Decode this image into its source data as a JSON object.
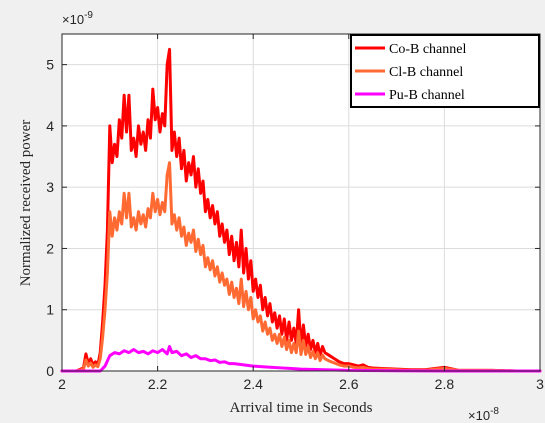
{
  "chart_data": {
    "type": "line",
    "xlabel": "Arrival time in Seconds",
    "ylabel": "Normalized received power",
    "x_multiplier": {
      "base": "×10",
      "exp": "-8"
    },
    "y_multiplier": {
      "base": "×10",
      "exp": "-9"
    },
    "xlim": [
      2,
      3
    ],
    "ylim": [
      0,
      5.5
    ],
    "x_ticks": [
      2,
      2.2,
      2.4,
      2.6,
      2.8,
      3
    ],
    "x_tick_labels": [
      "2",
      "2.2",
      "2.4",
      "2.6",
      "2.8",
      "3"
    ],
    "y_ticks": [
      0,
      1,
      2,
      3,
      4,
      5
    ],
    "y_tick_labels": [
      "0",
      "1",
      "2",
      "3",
      "4",
      "5"
    ],
    "grid": true,
    "legend_position": "top-right",
    "series": [
      {
        "name": "Co-B channel",
        "color": "#ff0000",
        "x": [
          2.0,
          2.03,
          2.045,
          2.05,
          2.055,
          2.06,
          2.065,
          2.07,
          2.075,
          2.08,
          2.085,
          2.09,
          2.095,
          2.1,
          2.105,
          2.11,
          2.115,
          2.12,
          2.125,
          2.13,
          2.135,
          2.14,
          2.145,
          2.15,
          2.155,
          2.16,
          2.165,
          2.17,
          2.175,
          2.18,
          2.185,
          2.19,
          2.195,
          2.2,
          2.205,
          2.21,
          2.215,
          2.22,
          2.225,
          2.23,
          2.235,
          2.24,
          2.245,
          2.25,
          2.255,
          2.26,
          2.265,
          2.27,
          2.275,
          2.28,
          2.285,
          2.29,
          2.295,
          2.3,
          2.305,
          2.31,
          2.315,
          2.32,
          2.325,
          2.33,
          2.335,
          2.34,
          2.345,
          2.35,
          2.355,
          2.36,
          2.365,
          2.37,
          2.375,
          2.38,
          2.385,
          2.39,
          2.395,
          2.4,
          2.405,
          2.41,
          2.415,
          2.42,
          2.425,
          2.43,
          2.435,
          2.44,
          2.445,
          2.45,
          2.455,
          2.46,
          2.465,
          2.47,
          2.475,
          2.48,
          2.485,
          2.49,
          2.495,
          2.5,
          2.505,
          2.51,
          2.515,
          2.52,
          2.525,
          2.53,
          2.535,
          2.54,
          2.545,
          2.55,
          2.56,
          2.57,
          2.58,
          2.59,
          2.6,
          2.61,
          2.62,
          2.63,
          2.64,
          2.65,
          2.67,
          2.7,
          2.73,
          2.76,
          2.78,
          2.8,
          2.83,
          2.87,
          2.9,
          2.95,
          3.0
        ],
        "y": [
          0,
          0,
          0.05,
          0.28,
          0.12,
          0.2,
          0.1,
          0.15,
          0.1,
          0.3,
          0.8,
          1.4,
          2.3,
          4.0,
          3.4,
          3.7,
          3.5,
          4.1,
          3.8,
          4.5,
          3.9,
          4.5,
          3.6,
          3.8,
          3.5,
          4.0,
          3.7,
          3.9,
          3.6,
          4.1,
          3.8,
          4.6,
          4.1,
          4.3,
          3.9,
          4.2,
          4.0,
          5.0,
          5.25,
          3.6,
          3.9,
          3.5,
          3.8,
          3.3,
          3.6,
          3.1,
          3.4,
          3.2,
          3.5,
          3.0,
          3.3,
          2.9,
          3.1,
          2.6,
          2.8,
          2.5,
          2.7,
          2.4,
          2.6,
          2.2,
          2.4,
          2.1,
          2.3,
          1.9,
          2.2,
          1.8,
          2.1,
          1.7,
          2.3,
          1.6,
          2.0,
          1.5,
          1.8,
          1.3,
          1.5,
          1.2,
          1.4,
          1.0,
          1.2,
          0.9,
          1.1,
          0.8,
          0.95,
          0.7,
          0.9,
          0.6,
          0.85,
          0.5,
          0.8,
          0.5,
          0.7,
          0.45,
          1.0,
          0.4,
          0.75,
          0.4,
          0.6,
          0.35,
          0.5,
          0.3,
          0.45,
          0.25,
          0.4,
          0.3,
          0.25,
          0.2,
          0.15,
          0.12,
          0.12,
          0.1,
          0.08,
          0.1,
          0.06,
          0.05,
          0.04,
          0.03,
          0.02,
          0.02,
          0.04,
          0.06,
          0.01,
          0.01,
          0.01,
          0,
          0
        ]
      },
      {
        "name": "Cl-B channel",
        "color": "#ff6a33",
        "x": [
          2.0,
          2.03,
          2.045,
          2.05,
          2.055,
          2.06,
          2.065,
          2.07,
          2.075,
          2.08,
          2.085,
          2.09,
          2.095,
          2.1,
          2.105,
          2.11,
          2.115,
          2.12,
          2.125,
          2.13,
          2.135,
          2.14,
          2.145,
          2.15,
          2.155,
          2.16,
          2.165,
          2.17,
          2.175,
          2.18,
          2.185,
          2.19,
          2.195,
          2.2,
          2.205,
          2.21,
          2.215,
          2.22,
          2.225,
          2.23,
          2.235,
          2.24,
          2.245,
          2.25,
          2.255,
          2.26,
          2.265,
          2.27,
          2.275,
          2.28,
          2.285,
          2.29,
          2.295,
          2.3,
          2.305,
          2.31,
          2.315,
          2.32,
          2.325,
          2.33,
          2.335,
          2.34,
          2.345,
          2.35,
          2.355,
          2.36,
          2.365,
          2.37,
          2.375,
          2.38,
          2.385,
          2.39,
          2.395,
          2.4,
          2.405,
          2.41,
          2.415,
          2.42,
          2.425,
          2.43,
          2.435,
          2.44,
          2.445,
          2.45,
          2.455,
          2.46,
          2.465,
          2.47,
          2.475,
          2.48,
          2.485,
          2.49,
          2.495,
          2.5,
          2.505,
          2.51,
          2.515,
          2.52,
          2.525,
          2.53,
          2.535,
          2.54,
          2.545,
          2.55,
          2.56,
          2.57,
          2.58,
          2.59,
          2.6,
          2.61,
          2.62,
          2.63,
          2.64,
          2.65,
          2.67,
          2.7,
          2.73,
          2.76,
          2.78,
          2.8,
          2.83,
          2.87,
          2.9,
          2.95,
          3.0
        ],
        "y": [
          0,
          0,
          0.03,
          0.18,
          0.08,
          0.13,
          0.06,
          0.1,
          0.07,
          0.2,
          0.55,
          1.0,
          1.6,
          2.6,
          2.2,
          2.5,
          2.3,
          2.6,
          2.4,
          2.9,
          2.5,
          2.9,
          2.35,
          2.5,
          2.3,
          2.6,
          2.4,
          2.55,
          2.35,
          2.65,
          2.5,
          2.9,
          2.6,
          2.8,
          2.55,
          2.75,
          2.6,
          3.2,
          3.4,
          2.4,
          2.55,
          2.3,
          2.5,
          2.2,
          2.35,
          2.05,
          2.25,
          2.1,
          2.3,
          1.95,
          2.15,
          1.9,
          2.05,
          1.7,
          1.85,
          1.65,
          1.8,
          1.55,
          1.7,
          1.45,
          1.6,
          1.4,
          1.5,
          1.25,
          1.45,
          1.2,
          1.35,
          1.1,
          1.5,
          1.05,
          1.3,
          1.0,
          1.2,
          0.85,
          1.0,
          0.8,
          0.9,
          0.65,
          0.8,
          0.6,
          0.7,
          0.5,
          0.6,
          0.45,
          0.6,
          0.4,
          0.55,
          0.35,
          0.5,
          0.3,
          0.45,
          0.3,
          0.65,
          0.27,
          0.5,
          0.27,
          0.4,
          0.22,
          0.32,
          0.2,
          0.3,
          0.17,
          0.26,
          0.2,
          0.16,
          0.13,
          0.1,
          0.08,
          0.08,
          0.06,
          0.05,
          0.06,
          0.04,
          0.03,
          0.03,
          0.02,
          0.01,
          0.01,
          0.03,
          0.04,
          0.01,
          0.01,
          0.01,
          0,
          0
        ]
      },
      {
        "name": "Pu-B channel",
        "color": "#ff00ff",
        "x": [
          2.0,
          2.08,
          2.09,
          2.1,
          2.11,
          2.12,
          2.13,
          2.14,
          2.15,
          2.16,
          2.17,
          2.18,
          2.19,
          2.2,
          2.21,
          2.22,
          2.225,
          2.23,
          2.24,
          2.25,
          2.26,
          2.27,
          2.28,
          2.29,
          2.3,
          2.31,
          2.32,
          2.33,
          2.34,
          2.35,
          2.36,
          2.38,
          2.4,
          2.42,
          2.44,
          2.46,
          2.48,
          2.5,
          2.55,
          2.6,
          2.7,
          2.8,
          3.0
        ],
        "y": [
          0,
          0,
          0.08,
          0.25,
          0.3,
          0.28,
          0.33,
          0.3,
          0.35,
          0.3,
          0.32,
          0.28,
          0.33,
          0.3,
          0.35,
          0.28,
          0.4,
          0.3,
          0.32,
          0.25,
          0.28,
          0.22,
          0.25,
          0.2,
          0.2,
          0.17,
          0.18,
          0.14,
          0.15,
          0.12,
          0.12,
          0.1,
          0.08,
          0.07,
          0.06,
          0.05,
          0.04,
          0.03,
          0.02,
          0.01,
          0.005,
          0,
          0
        ]
      }
    ]
  }
}
